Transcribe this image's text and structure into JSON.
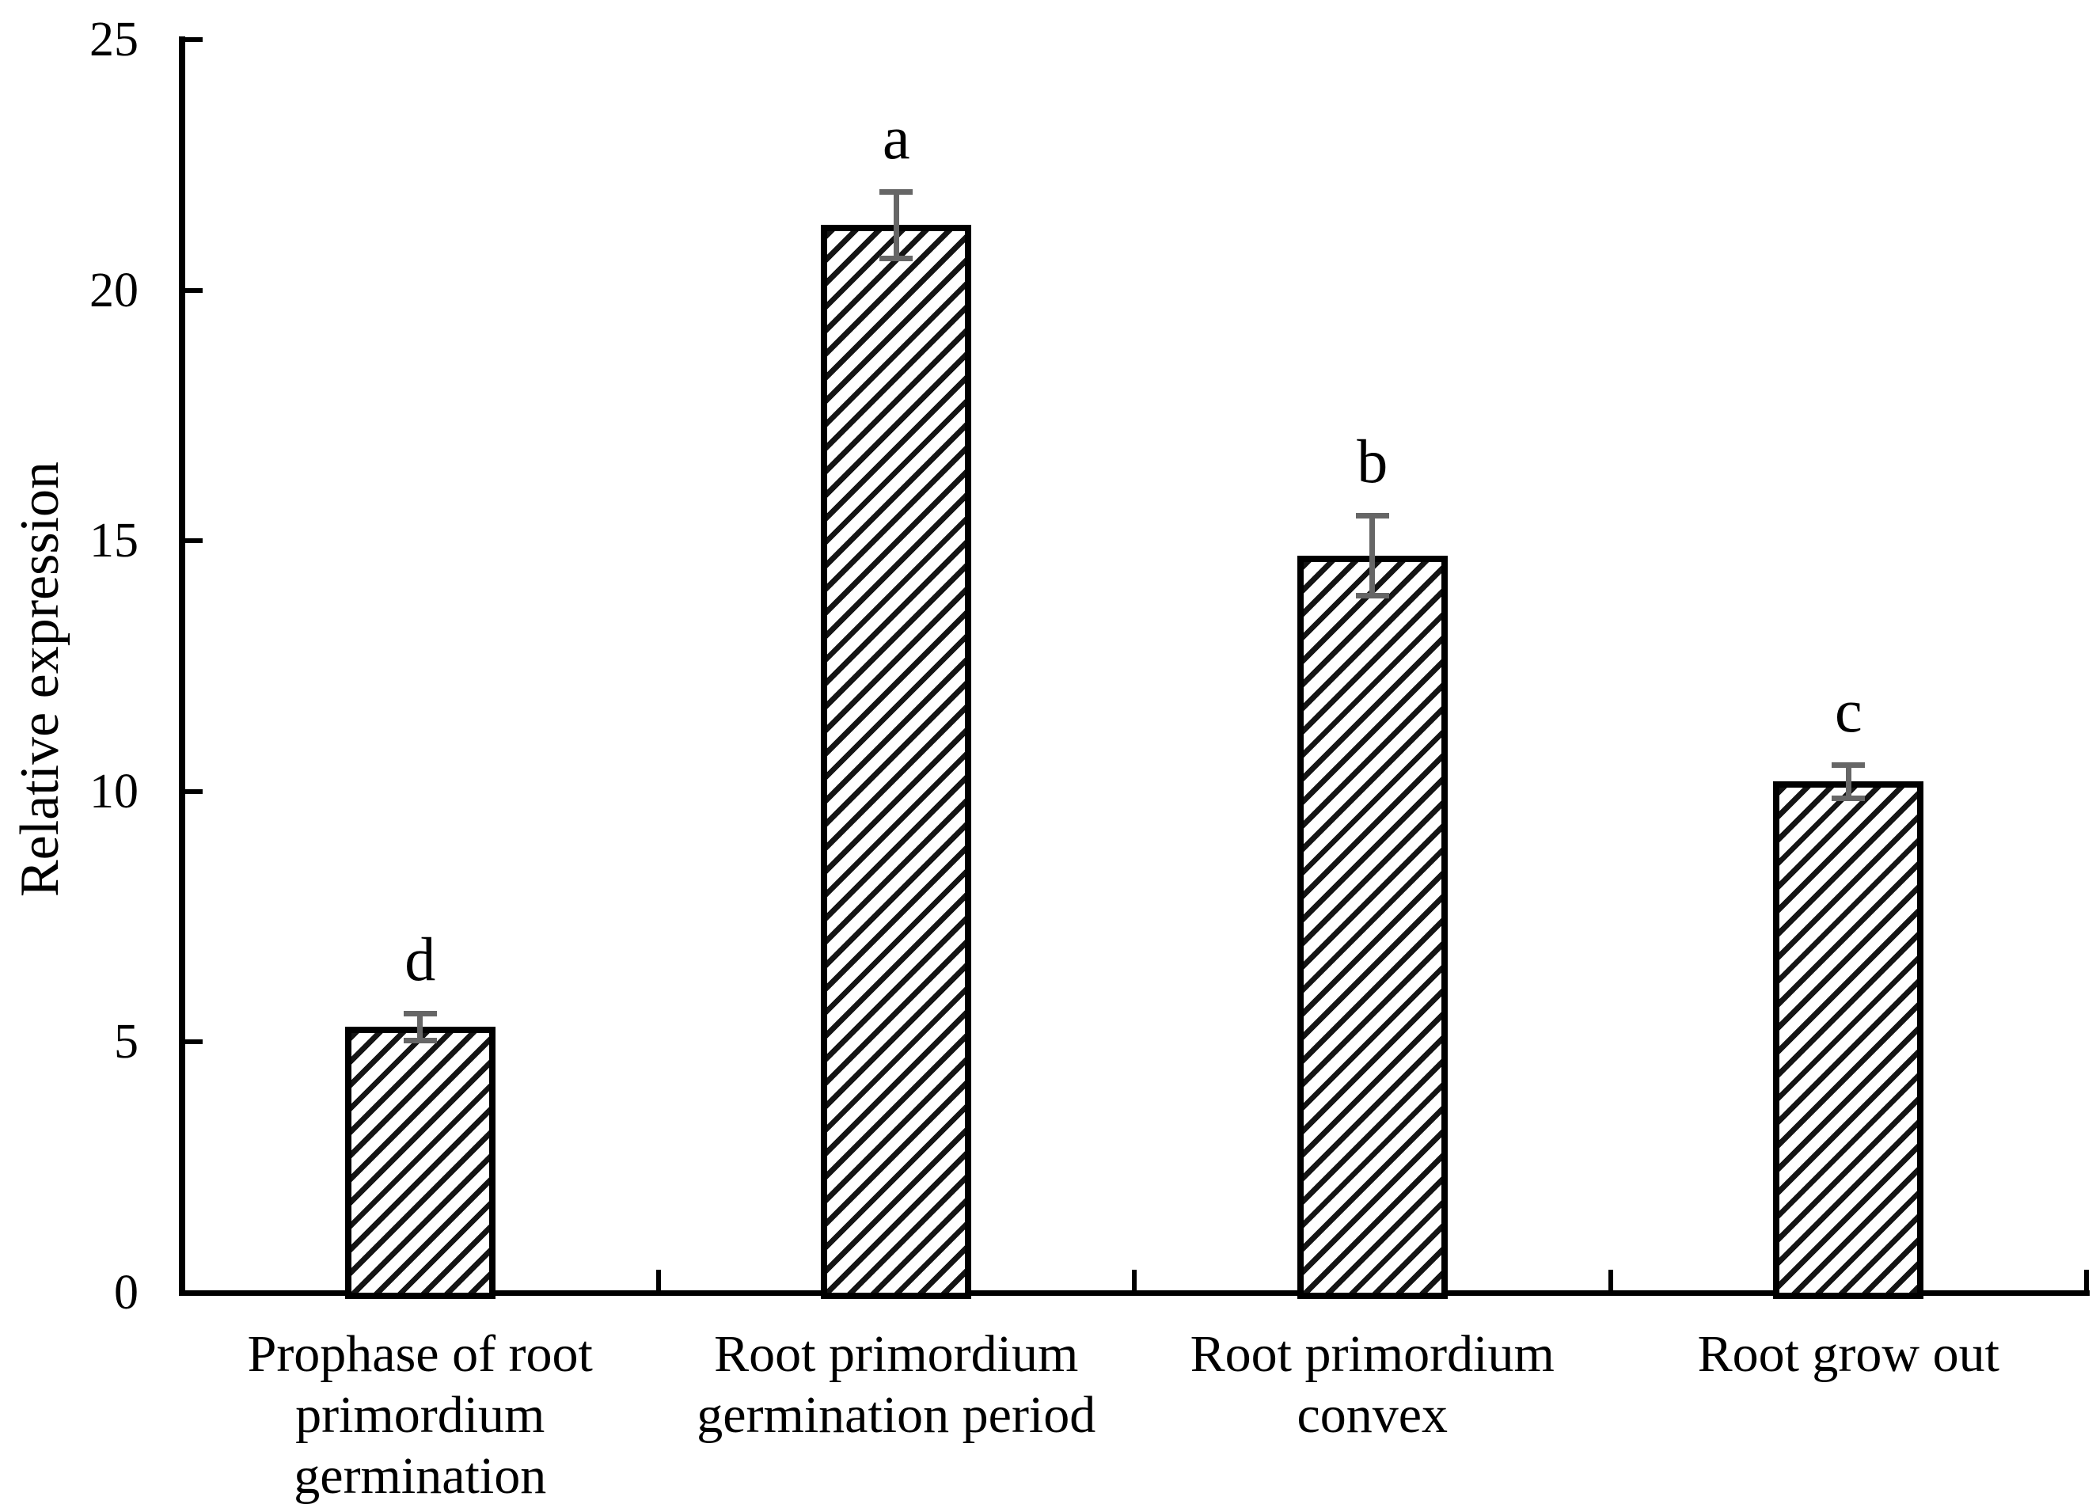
{
  "chart_data": {
    "type": "bar",
    "title": "",
    "xlabel": "",
    "ylabel": "Relative expression",
    "ylim": [
      0,
      25
    ],
    "yticks": [
      "0",
      "5",
      "10",
      "15",
      "20",
      "25"
    ],
    "ytick_values": [
      0,
      5,
      10,
      15,
      20,
      25
    ],
    "categories": [
      [
        "Prophase of root",
        "primordium",
        "germination"
      ],
      [
        "Root primordium",
        "germination period"
      ],
      [
        "Root primordium",
        "convex"
      ],
      [
        "Root grow out"
      ]
    ],
    "categories_full": [
      "Prophase of root primordium germination",
      "Root primordium germination period",
      "Root primordium convex",
      "Root grow out"
    ],
    "values": [
      5.3,
      21.3,
      14.7,
      10.2
    ],
    "errors": [
      0.27,
      0.67,
      0.81,
      0.34
    ],
    "sig_letters": [
      "d",
      "a",
      "b",
      "c"
    ],
    "bar_style": {
      "fill": "#ffffff",
      "hatch": "diagonal-up",
      "border": "#000000"
    },
    "error_color": "#666666",
    "axis_color": "#000000",
    "grid": "off",
    "legend": "none"
  }
}
